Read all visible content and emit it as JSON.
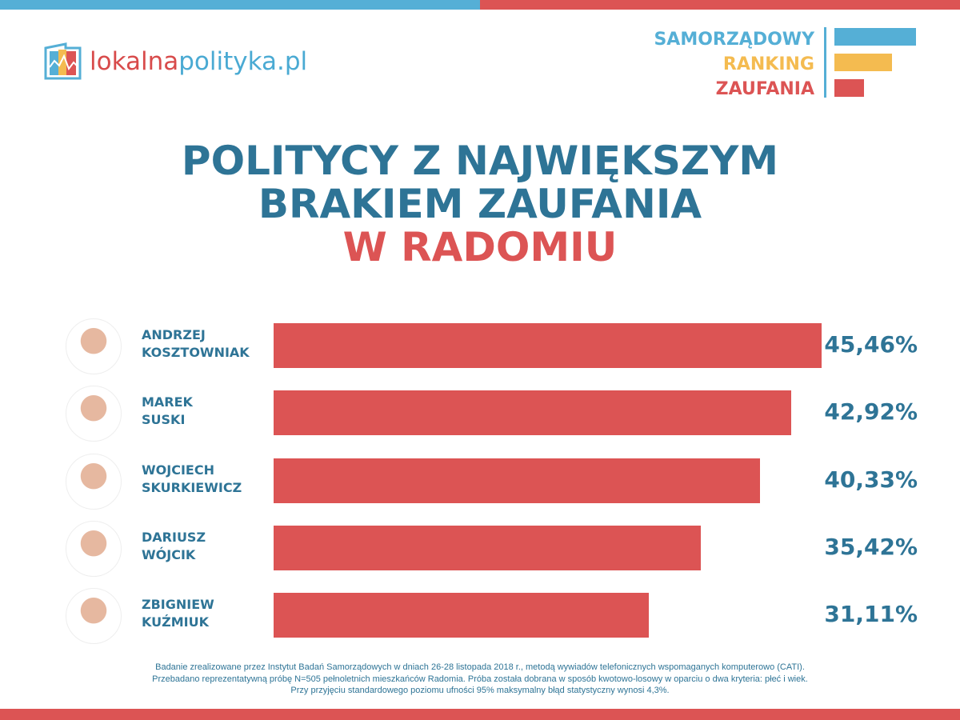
{
  "logo": {
    "part1": "lokalna",
    "part2": "polityka.pl"
  },
  "ranking": {
    "line1": "SAMORZĄDOWY",
    "line2": "RANKING",
    "line3": "ZAUFANIA",
    "colors": [
      "#55afd6",
      "#f4bb50",
      "#dc5454"
    ]
  },
  "chart_data": {
    "type": "bar",
    "title": [
      "POLITYCY Z NAJWIĘKSZYM",
      "BRAKIEM ZAUFANIA",
      "W RADOMIU"
    ],
    "categories": [
      [
        "ANDRZEJ",
        "KOSZTOWNIAK"
      ],
      [
        "MAREK",
        "SUSKI"
      ],
      [
        "WOJCIECH",
        "SKURKIEWICZ"
      ],
      [
        "DARIUSZ",
        "WÓJCIK"
      ],
      [
        "ZBIGNIEW",
        "KUŹMIUK"
      ]
    ],
    "values": [
      45.46,
      42.92,
      40.33,
      35.42,
      31.11
    ],
    "labels": [
      "45,46%",
      "42,92%",
      "40,33%",
      "35,42%",
      "31,11%"
    ],
    "unit": "%",
    "bar_color": "#dc5454"
  },
  "footnote": [
    "Badanie zrealizowane przez Instytut Badań Samorządowych w dniach 26-28 listopada 2018 r., metodą wywiadów telefonicznych wspomaganych komputerowo (CATI).",
    "Przebadano reprezentatywną próbę N=505 pełnoletnich mieszkańców Radomia. Próba została dobrana w sposób kwotowo-losowy w oparciu o dwa kryteria: płeć i wiek.",
    "Przy przyjęciu standardowego poziomu ufności 95% maksymalny błąd statystyczny wynosi 4,3%."
  ]
}
